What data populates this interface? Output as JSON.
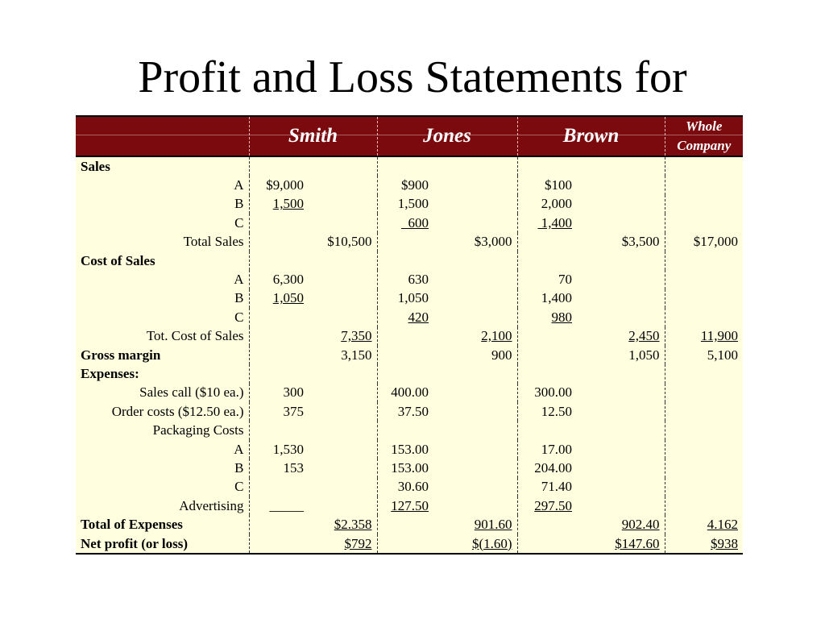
{
  "title": "Profit and Loss Statements for",
  "header": {
    "columns": [
      "Smith",
      "Jones",
      "Brown"
    ],
    "whole_line1": "Whole",
    "whole_line2": "Company"
  },
  "colors": {
    "header_bg": "#7b0a0e",
    "body_bg": "#ffffe0"
  },
  "rows": [
    {
      "label": "Sales",
      "bold": true,
      "left": true,
      "cells": [
        "",
        "",
        "",
        "",
        "",
        "",
        ""
      ]
    },
    {
      "label": "A",
      "cells": [
        "$9,000",
        "",
        "$900",
        "",
        "$100",
        "",
        ""
      ]
    },
    {
      "label": "B",
      "cells": [
        "1,500",
        "",
        "1,500",
        "",
        "2,000",
        "",
        ""
      ],
      "underline": [
        0
      ]
    },
    {
      "label": "C",
      "cells": [
        "",
        "",
        "  600",
        "",
        " 1,400",
        "",
        ""
      ],
      "underline": [
        2,
        4
      ]
    },
    {
      "label": "Total Sales",
      "cells": [
        "",
        "$10,500",
        "",
        "$3,000",
        "",
        "$3,500",
        "$17,000"
      ]
    },
    {
      "label": "Cost of Sales",
      "bold": true,
      "left": true,
      "cells": [
        "",
        "",
        "",
        "",
        "",
        "",
        ""
      ]
    },
    {
      "label": "A",
      "cells": [
        "6,300",
        "",
        "630",
        "",
        "70",
        "",
        ""
      ]
    },
    {
      "label": "B",
      "cells": [
        "1,050",
        "",
        "1,050",
        "",
        "1,400",
        "",
        ""
      ],
      "underline": [
        0
      ]
    },
    {
      "label": "C",
      "cells": [
        "",
        "",
        "420",
        "",
        "980",
        "",
        ""
      ],
      "underline": [
        2,
        4
      ]
    },
    {
      "label": "Tot. Cost of Sales",
      "cells": [
        "",
        "7,350",
        "",
        "2,100",
        "",
        "2,450",
        "11,900"
      ],
      "underline": [
        1,
        3,
        5,
        6
      ]
    },
    {
      "label": "Gross margin",
      "bold": true,
      "left": true,
      "cells": [
        "",
        "3,150",
        "",
        "900",
        "",
        "1,050",
        "5,100"
      ]
    },
    {
      "label": "Expenses:",
      "bold": true,
      "left": true,
      "cells": [
        "",
        "",
        "",
        "",
        "",
        "",
        ""
      ]
    },
    {
      "label": "Sales call ($10 ea.)",
      "cells": [
        "300",
        "",
        "400.00",
        "",
        "300.00",
        "",
        ""
      ]
    },
    {
      "label": "Order costs ($12.50 ea.)",
      "cells": [
        "375",
        "",
        "37.50",
        "",
        "12.50",
        "",
        ""
      ]
    },
    {
      "label": "Packaging Costs",
      "cells": [
        "",
        "",
        "",
        "",
        "",
        "",
        ""
      ]
    },
    {
      "label": "A",
      "cells": [
        "1,530",
        "",
        "153.00",
        "",
        "17.00",
        "",
        ""
      ]
    },
    {
      "label": "B",
      "cells": [
        "153",
        "",
        "153.00",
        "",
        "204.00",
        "",
        ""
      ]
    },
    {
      "label": "C",
      "cells": [
        "",
        "",
        "30.60",
        "",
        "71.40",
        "",
        ""
      ]
    },
    {
      "label": "Advertising",
      "cells": [
        "_____",
        "",
        "127.50",
        "",
        "297.50",
        "",
        ""
      ],
      "underline": [
        2,
        4
      ]
    },
    {
      "label": "Total of Expenses",
      "bold": true,
      "left": true,
      "cells": [
        "",
        "$2.358",
        "",
        "901.60",
        "",
        "902.40",
        "4.162"
      ],
      "underline": [
        1,
        3,
        5,
        6
      ]
    },
    {
      "label": "Net profit (or loss)",
      "bold": true,
      "left": true,
      "cells": [
        "",
        "$792",
        "",
        "$(1.60)",
        "",
        "$147.60",
        "$938"
      ],
      "underline": [
        1,
        3,
        5,
        6
      ]
    }
  ]
}
